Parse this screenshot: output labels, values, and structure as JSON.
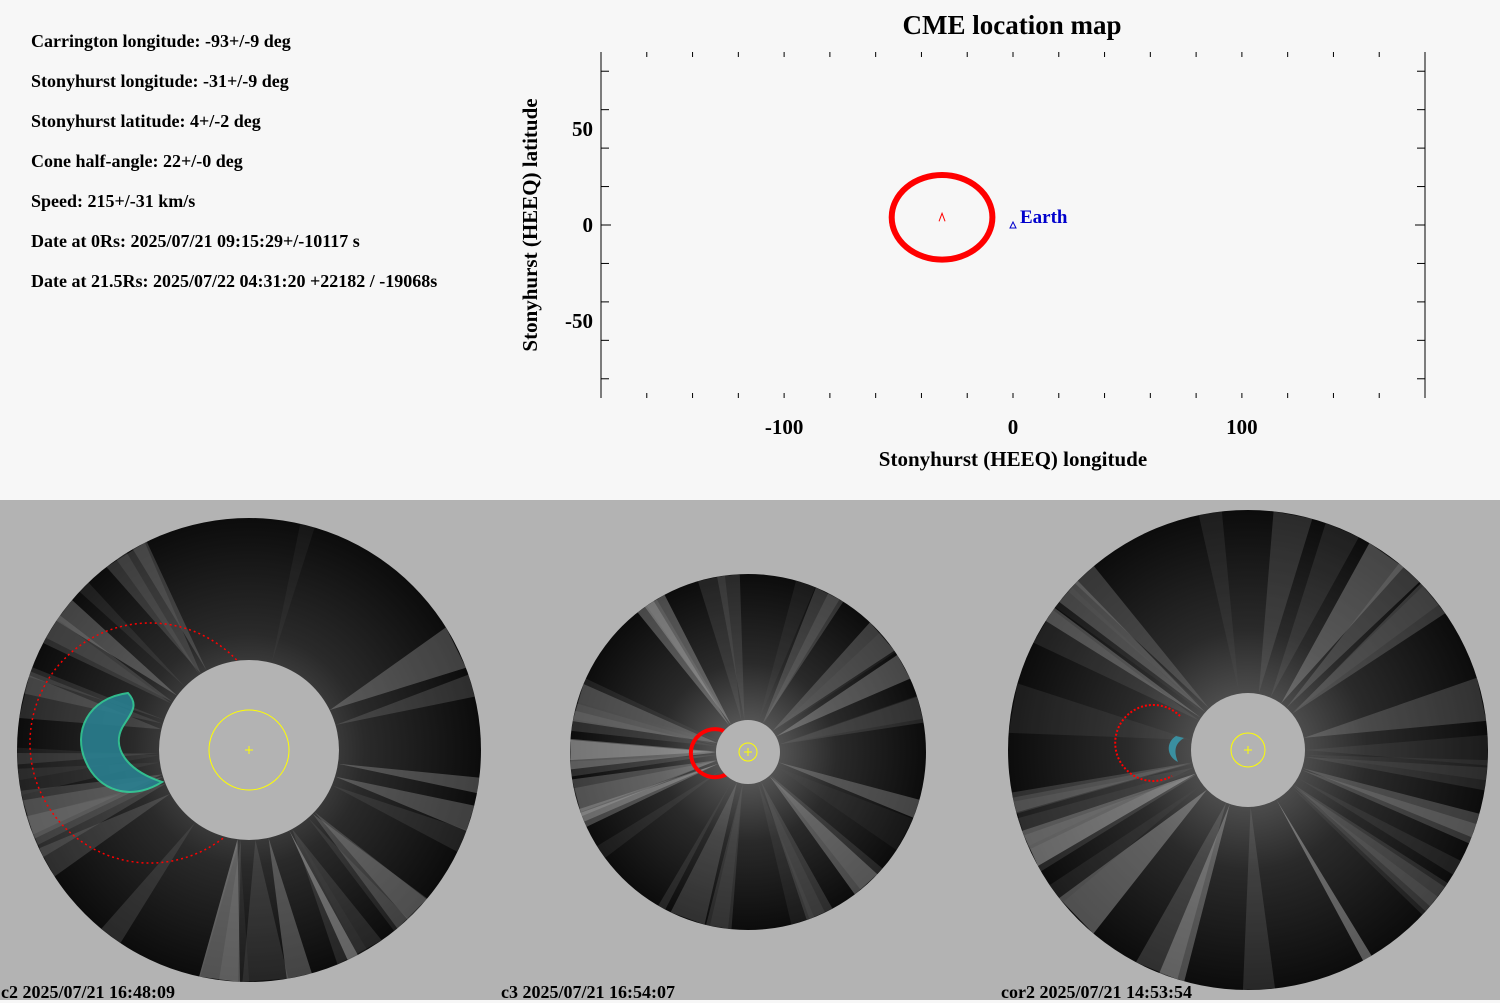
{
  "info": [
    {
      "label": "Carrington longitude:",
      "value": "-93+/-9 deg"
    },
    {
      "label": "Stonyhurst longitude:",
      "value": "-31+/-9 deg"
    },
    {
      "label": "Stonyhurst latitude:",
      "value": "4+/-2 deg"
    },
    {
      "label": "Cone half-angle:",
      "value": "22+/-0 deg"
    },
    {
      "label": "Speed:",
      "value": "215+/-31 km/s"
    },
    {
      "label": "Date at 0Rs:",
      "value": "2025/07/21 09:15:29+/-10117 s"
    },
    {
      "label": "Date at 21.5Rs:",
      "value": "2025/07/22 04:31:20 +22182 / -19068s"
    }
  ],
  "chart_data": {
    "type": "scatter",
    "title": "CME location map",
    "xlabel": "Stonyhurst (HEEQ) longitude",
    "ylabel": "Stonyhurst (HEEQ) latitude",
    "xlim": [
      -180,
      180
    ],
    "ylim": [
      -90,
      90
    ],
    "xticks": [
      -100,
      0,
      100
    ],
    "yticks": [
      50,
      0,
      -50
    ],
    "grid": false,
    "series": [
      {
        "name": "CME",
        "x": [
          -31
        ],
        "y": [
          4
        ],
        "cone_half_angle": 22,
        "color": "#ff0000"
      },
      {
        "name": "Earth",
        "x": [
          0
        ],
        "y": [
          0
        ],
        "color": "#0000cc"
      }
    ]
  },
  "panels": [
    {
      "instrument": "c2",
      "label": "c2 2025/07/21 16:48:09"
    },
    {
      "instrument": "c3",
      "label": "c3 2025/07/21 16:54:07"
    },
    {
      "instrument": "cor2",
      "label": "cor2 2025/07/21 14:53:54"
    }
  ],
  "colors": {
    "cme": "#ff0000",
    "earth": "#0000cc",
    "sun_outline": "#ffff00",
    "occulter": "#b3b3b3",
    "panel_bg": "#b3b3b3"
  }
}
